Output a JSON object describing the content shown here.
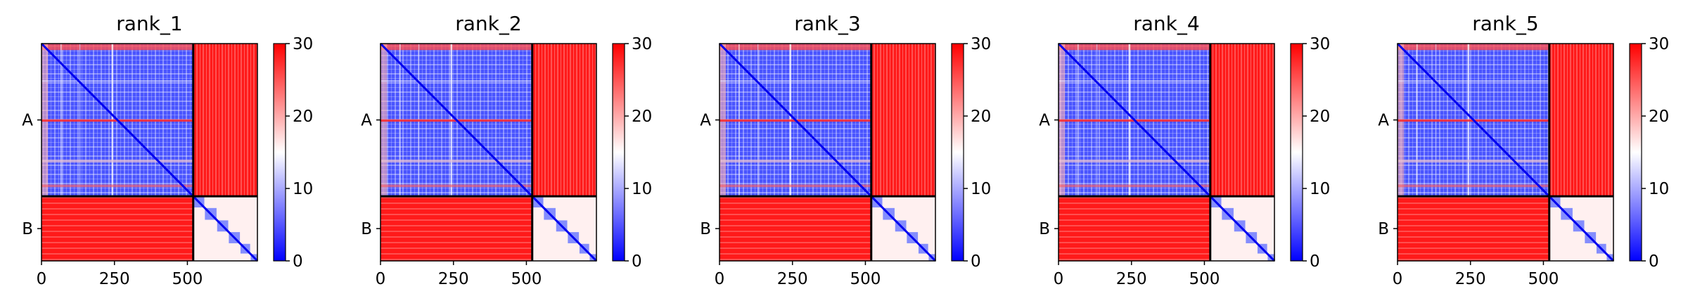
{
  "figure": {
    "colorbar": {
      "ticks": [
        0,
        10,
        20,
        30
      ],
      "vmin": 0,
      "vmax": 30,
      "cmap": [
        "#0000ff",
        "#ffffff",
        "#ff0000"
      ]
    }
  },
  "chart_data": [
    {
      "type": "heatmap",
      "title": "rank_1",
      "xlabel": "",
      "ylabel": "",
      "xticks": [
        0,
        250,
        500
      ],
      "xlim": [
        0,
        740
      ],
      "ylabels": [
        "A",
        "B"
      ],
      "chain_boundary": 520,
      "chains": [
        {
          "name": "A",
          "start": 0,
          "end": 520
        },
        {
          "name": "B",
          "start": 520,
          "end": 740
        }
      ],
      "value_range": [
        0,
        30
      ],
      "intra_chain_A_error": [
        2,
        12
      ],
      "intra_chain_B_error": [
        1,
        28
      ],
      "inter_chain_error": 30,
      "grid": false
    },
    {
      "type": "heatmap",
      "title": "rank_2",
      "xlabel": "",
      "ylabel": "",
      "xticks": [
        0,
        250,
        500
      ],
      "xlim": [
        0,
        740
      ],
      "ylabels": [
        "A",
        "B"
      ],
      "chain_boundary": 520,
      "chains": [
        {
          "name": "A",
          "start": 0,
          "end": 520
        },
        {
          "name": "B",
          "start": 520,
          "end": 740
        }
      ],
      "value_range": [
        0,
        30
      ],
      "intra_chain_A_error": [
        2,
        12
      ],
      "intra_chain_B_error": [
        1,
        28
      ],
      "inter_chain_error": 30,
      "grid": false
    },
    {
      "type": "heatmap",
      "title": "rank_3",
      "xlabel": "",
      "ylabel": "",
      "xticks": [
        0,
        250,
        500
      ],
      "xlim": [
        0,
        740
      ],
      "ylabels": [
        "A",
        "B"
      ],
      "chain_boundary": 520,
      "chains": [
        {
          "name": "A",
          "start": 0,
          "end": 520
        },
        {
          "name": "B",
          "start": 520,
          "end": 740
        }
      ],
      "value_range": [
        0,
        30
      ],
      "intra_chain_A_error": [
        2,
        12
      ],
      "intra_chain_B_error": [
        1,
        28
      ],
      "inter_chain_error": 30,
      "grid": false
    },
    {
      "type": "heatmap",
      "title": "rank_4",
      "xlabel": "",
      "ylabel": "",
      "xticks": [
        0,
        250,
        500
      ],
      "xlim": [
        0,
        740
      ],
      "ylabels": [
        "A",
        "B"
      ],
      "chain_boundary": 520,
      "chains": [
        {
          "name": "A",
          "start": 0,
          "end": 520
        },
        {
          "name": "B",
          "start": 520,
          "end": 740
        }
      ],
      "value_range": [
        0,
        30
      ],
      "intra_chain_A_error": [
        2,
        12
      ],
      "intra_chain_B_error": [
        1,
        28
      ],
      "inter_chain_error": 30,
      "grid": false
    },
    {
      "type": "heatmap",
      "title": "rank_5",
      "xlabel": "",
      "ylabel": "",
      "xticks": [
        0,
        250,
        500
      ],
      "xlim": [
        0,
        740
      ],
      "ylabels": [
        "A",
        "B"
      ],
      "chain_boundary": 520,
      "chains": [
        {
          "name": "A",
          "start": 0,
          "end": 520
        },
        {
          "name": "B",
          "start": 520,
          "end": 740
        }
      ],
      "value_range": [
        0,
        30
      ],
      "intra_chain_A_error": [
        2,
        12
      ],
      "intra_chain_B_error": [
        1,
        28
      ],
      "inter_chain_error": 30,
      "grid": false
    }
  ]
}
